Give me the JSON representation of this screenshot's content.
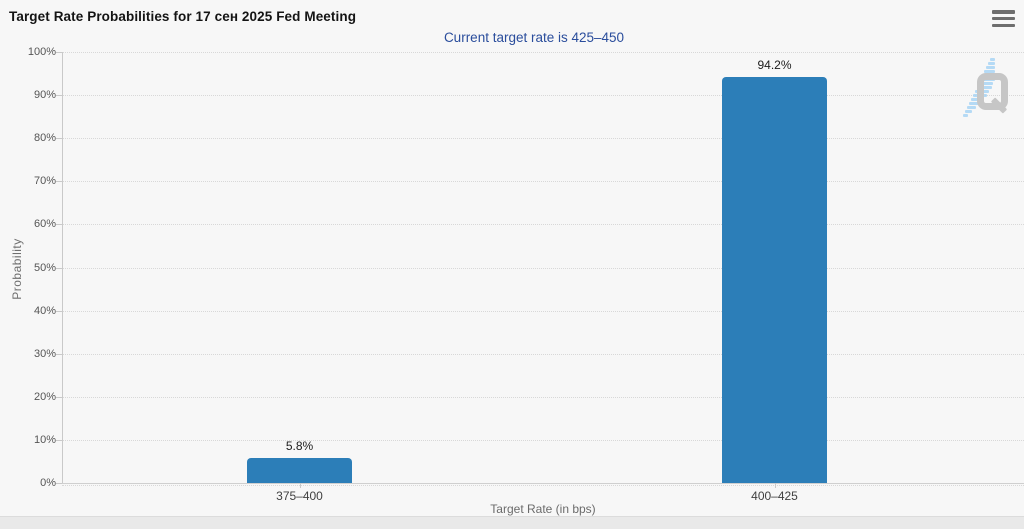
{
  "chart_data": {
    "type": "bar",
    "title": "Target Rate Probabilities for 17 сен 2025 Fed Meeting",
    "subtitle": "Current target rate is 425–450",
    "categories": [
      "375–400",
      "400–425"
    ],
    "values": [
      5.8,
      94.2
    ],
    "value_labels": [
      "5.8%",
      "94.2%"
    ],
    "xlabel": "Target Rate (in bps)",
    "ylabel": "Probability",
    "ylim": [
      0,
      100
    ],
    "ytick_step": 10,
    "ytick_labels": [
      "0%",
      "10%",
      "20%",
      "30%",
      "40%",
      "50%",
      "60%",
      "70%",
      "80%",
      "90%",
      "100%"
    ],
    "grid": "dotted-horizontal",
    "legend_position": "none",
    "bar_color": "#2c7eb8",
    "subtitle_color": "#2a4d9c"
  },
  "icons": {
    "menu": "hamburger-menu-icon"
  },
  "watermark": {
    "letter": "Q"
  }
}
